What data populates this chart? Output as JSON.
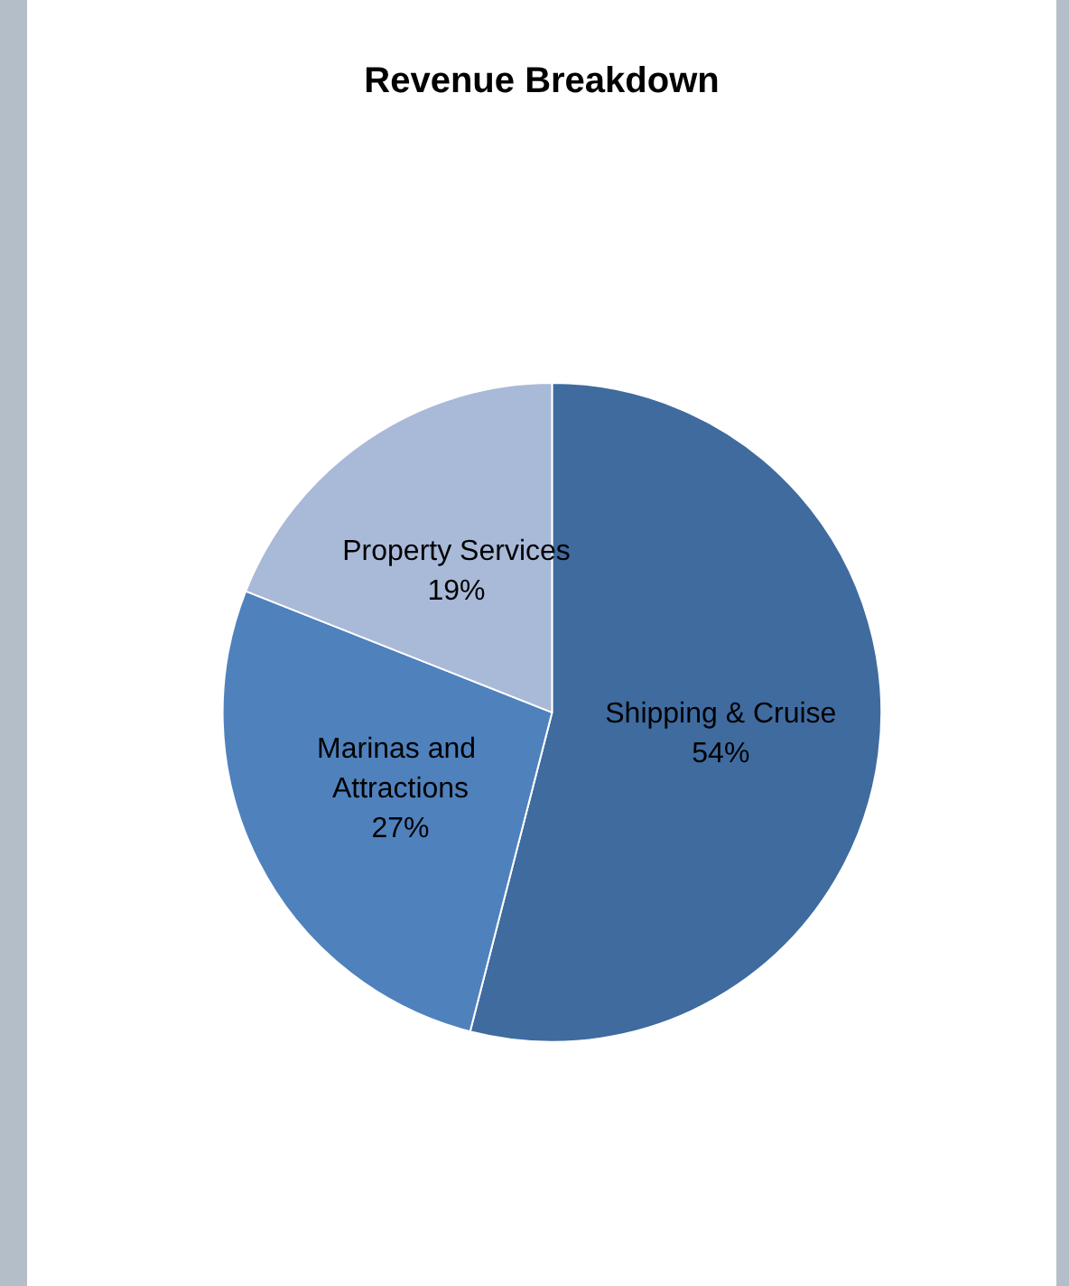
{
  "chart_data": {
    "type": "pie",
    "title": "Revenue Breakdown",
    "categories": [
      "Shipping & Cruise",
      "Marinas and Attractions",
      "Property Services"
    ],
    "values": [
      54,
      27,
      19
    ],
    "value_labels": [
      "54%",
      "27%",
      "19%"
    ],
    "colors": [
      "#3f6b9f",
      "#4f81bd",
      "#a9b9d8"
    ]
  }
}
